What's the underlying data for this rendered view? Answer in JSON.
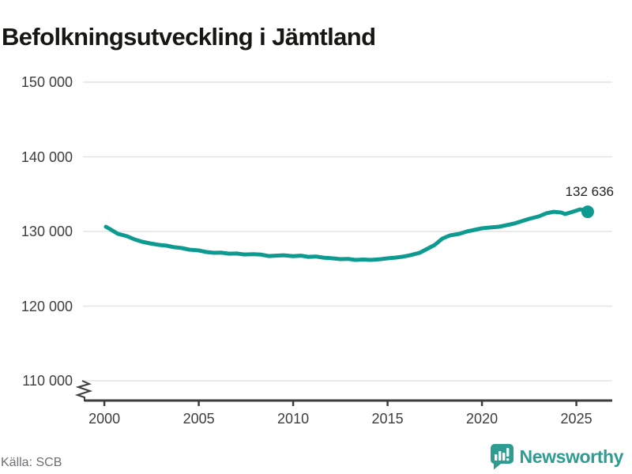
{
  "title": "Befolkningsutveckling i Jämtland",
  "footer": {
    "source": "Källa: SCB",
    "brand": "Newsworthy"
  },
  "annotation": {
    "last_value_label": "132 636"
  },
  "colors": {
    "line": "#0d9a90",
    "marker": "#0d9a90",
    "grid": "#e4e4e4",
    "axis": "#3d3d3d",
    "tick_text": "#3d3d3d",
    "title_text": "#161613",
    "annotation_text": "#222222",
    "source_text": "#6e6e76",
    "brand": "#2f9c92"
  },
  "chart_data": {
    "type": "line",
    "title": "Befolkningsutveckling i Jämtland",
    "xlabel": "",
    "ylabel": "",
    "x_ticks": [
      2000,
      2005,
      2010,
      2015,
      2020,
      2025
    ],
    "y_ticks": [
      110000,
      120000,
      130000,
      140000,
      150000
    ],
    "y_tick_labels": [
      "110 000",
      "120 000",
      "130 000",
      "140 000",
      "150 000"
    ],
    "xlim": [
      1998.95,
      2026.9
    ],
    "ylim": [
      110000,
      150000
    ],
    "grid": "horizontal",
    "legend": "none",
    "axis_break_bottom_left": true,
    "last_point": {
      "value": 132636,
      "label": "132 636",
      "x": 2025.6
    },
    "series": [
      {
        "name": "Befolkning, Jämtlands län",
        "points": [
          [
            2000.08,
            130630
          ],
          [
            2000.3,
            130320
          ],
          [
            2000.7,
            129700
          ],
          [
            2001.2,
            129370
          ],
          [
            2001.6,
            128940
          ],
          [
            2002.0,
            128620
          ],
          [
            2002.4,
            128410
          ],
          [
            2002.9,
            128200
          ],
          [
            2003.3,
            128100
          ],
          [
            2003.7,
            127890
          ],
          [
            2004.1,
            127780
          ],
          [
            2004.5,
            127570
          ],
          [
            2005.0,
            127460
          ],
          [
            2005.4,
            127250
          ],
          [
            2005.8,
            127140
          ],
          [
            2006.2,
            127160
          ],
          [
            2006.6,
            127030
          ],
          [
            2007.0,
            127050
          ],
          [
            2007.4,
            126920
          ],
          [
            2007.9,
            126960
          ],
          [
            2008.3,
            126900
          ],
          [
            2008.7,
            126710
          ],
          [
            2009.1,
            126760
          ],
          [
            2009.5,
            126820
          ],
          [
            2010.0,
            126700
          ],
          [
            2010.4,
            126760
          ],
          [
            2010.8,
            126600
          ],
          [
            2011.2,
            126650
          ],
          [
            2011.6,
            126500
          ],
          [
            2012.1,
            126400
          ],
          [
            2012.5,
            126300
          ],
          [
            2012.9,
            126330
          ],
          [
            2013.3,
            126190
          ],
          [
            2013.7,
            126240
          ],
          [
            2014.1,
            126190
          ],
          [
            2014.6,
            126290
          ],
          [
            2015.0,
            126400
          ],
          [
            2015.4,
            126500
          ],
          [
            2015.8,
            126620
          ],
          [
            2016.2,
            126820
          ],
          [
            2016.7,
            127140
          ],
          [
            2017.1,
            127670
          ],
          [
            2017.5,
            128200
          ],
          [
            2017.9,
            129050
          ],
          [
            2018.3,
            129470
          ],
          [
            2018.8,
            129680
          ],
          [
            2019.2,
            130000
          ],
          [
            2019.6,
            130210
          ],
          [
            2020.0,
            130420
          ],
          [
            2020.4,
            130530
          ],
          [
            2020.9,
            130630
          ],
          [
            2021.3,
            130850
          ],
          [
            2021.7,
            131060
          ],
          [
            2022.1,
            131380
          ],
          [
            2022.5,
            131690
          ],
          [
            2023.0,
            132010
          ],
          [
            2023.4,
            132430
          ],
          [
            2023.8,
            132640
          ],
          [
            2024.2,
            132540
          ],
          [
            2024.4,
            132330
          ],
          [
            2024.8,
            132640
          ],
          [
            2025.2,
            132960
          ],
          [
            2025.4,
            132850
          ],
          [
            2025.6,
            132636
          ]
        ]
      }
    ]
  }
}
